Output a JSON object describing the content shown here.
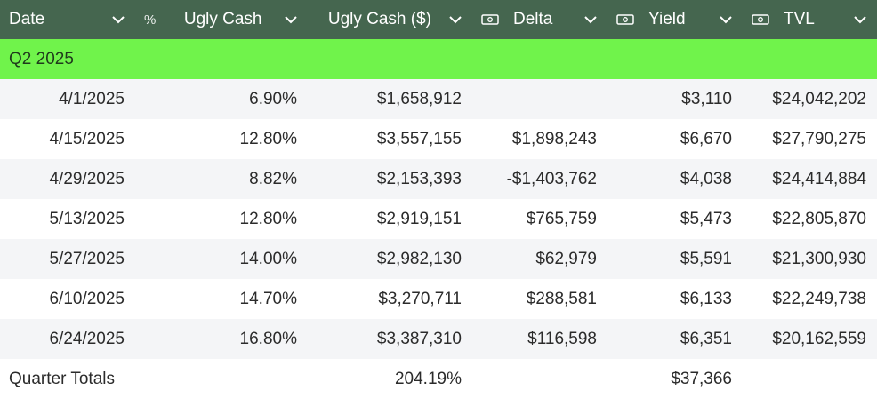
{
  "columns": [
    {
      "label": "Date"
    },
    {
      "label": "Ugly Cash",
      "prefix": "%"
    },
    {
      "label": "Ugly Cash ($)"
    },
    {
      "label": "Delta",
      "icon": "cash-icon"
    },
    {
      "label": "Yield",
      "icon": "cash-icon"
    },
    {
      "label": "TVL",
      "icon": "cash-icon"
    }
  ],
  "group": {
    "label": "Q2 2025"
  },
  "rows": [
    {
      "date": "4/1/2025",
      "pct": "6.90%",
      "cash": "$1,658,912",
      "delta": "",
      "yield": "$3,110",
      "tvl": "$24,042,202"
    },
    {
      "date": "4/15/2025",
      "pct": "12.80%",
      "cash": "$3,557,155",
      "delta": "$1,898,243",
      "yield": "$6,670",
      "tvl": "$27,790,275"
    },
    {
      "date": "4/29/2025",
      "pct": "8.82%",
      "cash": "$2,153,393",
      "delta": "-$1,403,762",
      "yield": "$4,038",
      "tvl": "$24,414,884"
    },
    {
      "date": "5/13/2025",
      "pct": "12.80%",
      "cash": "$2,919,151",
      "delta": "$765,759",
      "yield": "$5,473",
      "tvl": "$22,805,870"
    },
    {
      "date": "5/27/2025",
      "pct": "14.00%",
      "cash": "$2,982,130",
      "delta": "$62,979",
      "yield": "$5,591",
      "tvl": "$21,300,930"
    },
    {
      "date": "6/10/2025",
      "pct": "14.70%",
      "cash": "$3,270,711",
      "delta": "$288,581",
      "yield": "$6,133",
      "tvl": "$22,249,738"
    },
    {
      "date": "6/24/2025",
      "pct": "16.80%",
      "cash": "$3,387,310",
      "delta": "$116,598",
      "yield": "$6,351",
      "tvl": "$20,162,559"
    }
  ],
  "totals": {
    "label": "Quarter Totals",
    "cash": "204.19%",
    "yield": "$37,366"
  },
  "colors": {
    "header_bg": "#45664f",
    "group_bg": "#70f34b",
    "stripe_bg": "#f4f5f7"
  }
}
